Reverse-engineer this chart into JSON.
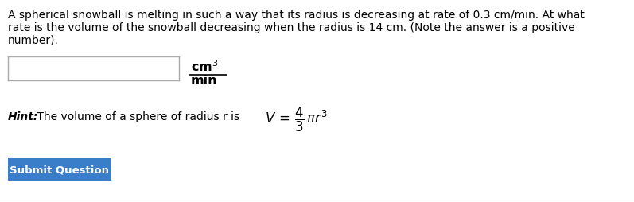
{
  "background_color": "#ffffff",
  "main_text_line1": "A spherical snowball is melting in such a way that its radius is decreasing at rate of 0.3 cm/min. At what",
  "main_text_line2": "rate is the volume of the snowball decreasing when the radius is 14 cm. (Note the answer is a positive",
  "main_text_line3": "number).",
  "main_fontsize": 10.0,
  "hint_italic": "Hint:",
  "hint_rest": " The volume of a sphere of radius r is ",
  "hint_fontsize": 10.0,
  "button_text": "Submit Question",
  "button_color": "#3a7dc9",
  "button_fontsize": 9.5,
  "units_fontsize": 11.5,
  "formula_fontsize": 12.0,
  "line_color": "#cccccc"
}
